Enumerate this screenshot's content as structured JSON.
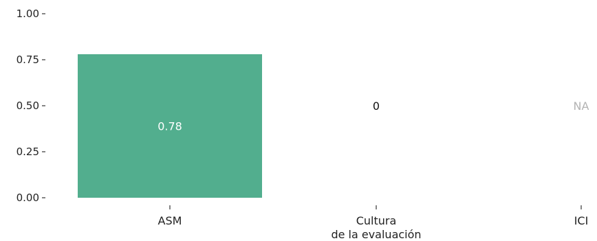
{
  "chart_data": {
    "type": "bar",
    "title": "",
    "xlabel": "",
    "ylabel": "",
    "ylim": [
      0,
      1
    ],
    "yticks": [
      "0.00",
      "0.25",
      "0.50",
      "0.75",
      "1.00"
    ],
    "categories": [
      "ASM",
      "Cultura\nde la evaluación",
      "ICI"
    ],
    "values": [
      0.78,
      0,
      null
    ],
    "data_labels": [
      "0.78",
      "0",
      "NA"
    ],
    "grid": false,
    "legend": "none",
    "colors": {
      "bar": "#52ae8e",
      "label_inside": "#ffffff",
      "label_outside": "#111111",
      "label_na": "#b3b3b3",
      "text": "#222222"
    }
  }
}
